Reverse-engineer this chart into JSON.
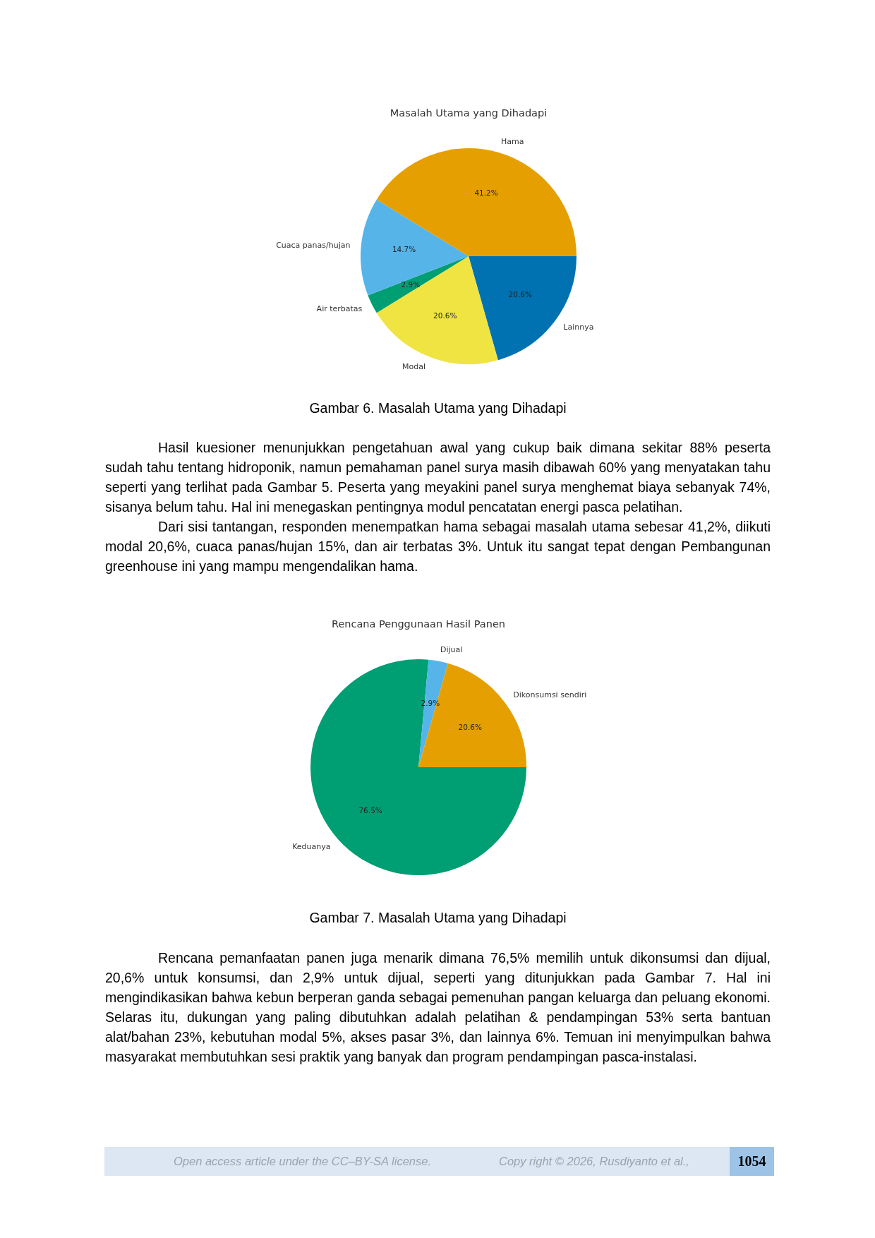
{
  "chart_data": [
    {
      "type": "pie",
      "title": "Masalah Utama yang Dihadapi",
      "categories": [
        "Hama",
        "Cuaca panas/hujan",
        "Air terbatas",
        "Modal",
        "Lainnya"
      ],
      "values": [
        41.2,
        14.7,
        2.9,
        20.6,
        20.6
      ],
      "colors": [
        "#e69f00",
        "#56b4e9",
        "#009e73",
        "#f0e442",
        "#0072b2"
      ],
      "value_labels": [
        "41.2%",
        "14.7%",
        "2.9%",
        "20.6%",
        "20.6%"
      ],
      "annotations": [
        "Gambar 6. Masalah Utama yang Dihadapi",
        "Hasil kuesioner menunjukkan pengetahuan awal yang cukup baik dimana sekitar 88% peserta sudah tahu tentang hidroponik, namun pemahaman panel surya masih dibawah 60% yang menyatakan tahu seperti yang terlihat pada Gambar 5. Peserta yang meyakini panel surya menghemat biaya sebanyak 74%, sisanya belum tahu. Hal ini menegaskan pentingnya modul pencatatan energi pasca pelatihan.",
        "Dari sisi tantangan, responden menempatkan hama sebagai masalah utama sebesar 41,2%, diikuti modal 20,6%, cuaca panas/hujan 15%, dan air terbatas 3%. Untuk itu sangat tepat dengan Pembangunan greenhouse ini yang mampu mengendalikan hama."
      ]
    },
    {
      "type": "pie",
      "title": "Rencana Penggunaan Hasil Panen",
      "categories": [
        "Dikonsumsi sendiri",
        "Dijual",
        "Keduanya"
      ],
      "values": [
        20.6,
        2.9,
        76.5
      ],
      "colors": [
        "#e69f00",
        "#56b4e9",
        "#009e73"
      ],
      "value_labels": [
        "20.6%",
        "2.9%",
        "76.5%"
      ],
      "annotations": [
        "Gambar 7. Masalah Utama yang Dihadapi",
        "Rencana pemanfaatan panen juga menarik dimana 76,5% memilih untuk dikonsumsi dan dijual, 20,6% untuk konsumsi, dan 2,9% untuk dijual, seperti yang ditunjukkan pada Gambar 7. Hal ini mengindikasikan bahwa kebun berperan ganda sebagai pemenuhan pangan keluarga dan peluang ekonomi. Selaras itu, dukungan yang paling dibutuhkan adalah pelatihan & pendampingan 53% serta bantuan alat/bahan 23%, kebutuhan modal 5%, akses pasar 3%, dan lainnya 6%. Temuan ini menyimpulkan bahwa masyarakat membutuhkan sesi praktik yang banyak dan program pendampingan pasca-instalasi.",
        "Open access article under the CC–BY-SA license.",
        "Copy right © 2026, Rusdiyanto et al.,",
        "1054"
      ]
    }
  ]
}
